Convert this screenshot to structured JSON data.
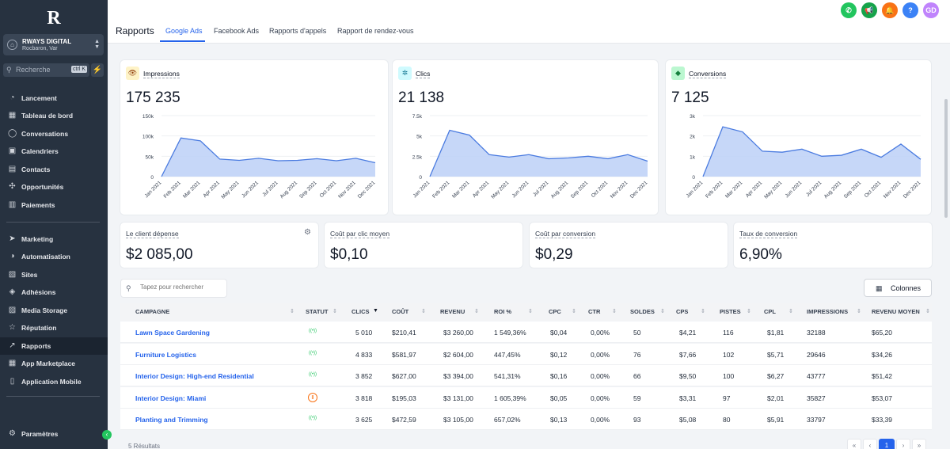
{
  "sidebar": {
    "logo": "R",
    "account": {
      "name": "RWAYS DIGITAL",
      "location": "Rocbaron, Var"
    },
    "search": {
      "placeholder": "Recherche",
      "shortcut": "ctrl K"
    },
    "items": [
      {
        "label": "Lancement",
        "icon": "rocket-icon"
      },
      {
        "label": "Tableau de bord",
        "icon": "dashboard-icon"
      },
      {
        "label": "Conversations",
        "icon": "chat-icon"
      },
      {
        "label": "Calendriers",
        "icon": "calendar-icon"
      },
      {
        "label": "Contacts",
        "icon": "contacts-icon"
      },
      {
        "label": "Opportunités",
        "icon": "opportunities-icon"
      },
      {
        "label": "Paiements",
        "icon": "payments-icon"
      },
      {
        "label": "Marketing",
        "icon": "send-icon"
      },
      {
        "label": "Automatisation",
        "icon": "automation-icon"
      },
      {
        "label": "Sites",
        "icon": "sites-icon"
      },
      {
        "label": "Adhésions",
        "icon": "membership-icon"
      },
      {
        "label": "Media Storage",
        "icon": "media-icon"
      },
      {
        "label": "Réputation",
        "icon": "star-icon"
      },
      {
        "label": "Rapports",
        "icon": "reports-icon",
        "active": true
      },
      {
        "label": "App Marketplace",
        "icon": "marketplace-icon"
      },
      {
        "label": "Application Mobile",
        "icon": "mobile-icon"
      }
    ],
    "settings": "Paramètres"
  },
  "header": {
    "title": "Rapports",
    "tabs": [
      "Google Ads",
      "Facebook Ads",
      "Rapports d'appels",
      "Rapport de rendez-vous"
    ],
    "avatar": "GD",
    "accent": "#2563eb"
  },
  "charts": [
    {
      "label": "Impressions",
      "value": "175 235",
      "icon": "eye-icon"
    },
    {
      "label": "Clics",
      "value": "21 138",
      "icon": "cursor-click-icon"
    },
    {
      "label": "Conversions",
      "value": "7 125",
      "icon": "diamond-icon"
    }
  ],
  "chart_data": [
    {
      "type": "area",
      "x": [
        "Jan 2021",
        "Feb 2021",
        "Mar 2021",
        "Apr 2021",
        "May 2021",
        "Jun 2021",
        "Jul 2021",
        "Aug 2021",
        "Sep 2021",
        "Oct 2021",
        "Nov 2021",
        "Dec 2021"
      ],
      "series": [
        {
          "values": [
            0,
            95000,
            88000,
            43000,
            40000,
            45000,
            39000,
            40000,
            44000,
            39000,
            45000,
            34000
          ]
        }
      ],
      "yticks": [
        "0",
        "50k",
        "100k",
        "150k"
      ],
      "ylim": [
        0,
        150000
      ]
    },
    {
      "type": "area",
      "x": [
        "Jan 2021",
        "Feb 2021",
        "Mar 2021",
        "Apr 2021",
        "May 2021",
        "Jun 2021",
        "Jul 2021",
        "Aug 2021",
        "Sep 2021",
        "Oct 2021",
        "Nov 2021",
        "Dec 2021"
      ],
      "series": [
        {
          "values": [
            0,
            5700,
            5100,
            2700,
            2400,
            2700,
            2200,
            2300,
            2500,
            2200,
            2700,
            1900
          ]
        }
      ],
      "yticks": [
        "0",
        "2.5k",
        "5k",
        "7.5k"
      ],
      "ylim": [
        0,
        7500
      ]
    },
    {
      "type": "area",
      "x": [
        "Jan 2021",
        "Feb 2021",
        "Mar 2021",
        "Apr 2021",
        "May 2021",
        "Jun 2021",
        "Jul 2021",
        "Aug 2021",
        "Sep 2021",
        "Oct 2021",
        "Nov 2021",
        "Dec 2021"
      ],
      "series": [
        {
          "values": [
            0,
            2450,
            2200,
            1250,
            1200,
            1350,
            1000,
            1050,
            1350,
            950,
            1600,
            850
          ]
        }
      ],
      "yticks": [
        "0",
        "1k",
        "2k",
        "3k"
      ],
      "ylim": [
        0,
        3000
      ]
    }
  ],
  "stats": [
    {
      "label": "Le client dépense",
      "value": "$2 085,00"
    },
    {
      "label": "Coût par clic moyen",
      "value": "$0,10"
    },
    {
      "label": "Coût par conversion",
      "value": "$0,29"
    },
    {
      "label": "Taux de conversion",
      "value": "6,90%"
    }
  ],
  "table": {
    "search_placeholder": "Tapez pour rechercher",
    "columns_button": "Colonnes",
    "headers": [
      "CAMPAGNE",
      "STATUT",
      "CLICS",
      "COÛT",
      "REVENU",
      "ROI %",
      "CPC",
      "CTR",
      "SOLDES",
      "CPS",
      "PISTES",
      "CPL",
      "IMPRESSIONS",
      "REVENU MOYEN"
    ],
    "rows": [
      {
        "name": "Lawn Space Gardening",
        "status": "active",
        "cells": [
          "5 010",
          "$210,41",
          "$3 260,00",
          "1 549,36%",
          "$0,04",
          "0,00%",
          "50",
          "$4,21",
          "116",
          "$1,81",
          "32188",
          "$65,20"
        ]
      },
      {
        "name": "Furniture Logistics",
        "status": "active",
        "cells": [
          "4 833",
          "$581,97",
          "$2 604,00",
          "447,45%",
          "$0,12",
          "0,00%",
          "76",
          "$7,66",
          "102",
          "$5,71",
          "29646",
          "$34,26"
        ]
      },
      {
        "name": "Interior Design: High-end Residential",
        "status": "active",
        "cells": [
          "3 852",
          "$627,00",
          "$3 394,00",
          "541,31%",
          "$0,16",
          "0,00%",
          "66",
          "$9,50",
          "100",
          "$6,27",
          "43777",
          "$51,42"
        ]
      },
      {
        "name": "Interior Design: Miami",
        "status": "paused",
        "cells": [
          "3 818",
          "$195,03",
          "$3 131,00",
          "1 605,39%",
          "$0,05",
          "0,00%",
          "59",
          "$3,31",
          "97",
          "$2,01",
          "35827",
          "$53,07"
        ]
      },
      {
        "name": "Planting and Trimming",
        "status": "active",
        "cells": [
          "3 625",
          "$472,59",
          "$3 105,00",
          "657,02%",
          "$0,13",
          "0,00%",
          "93",
          "$5,08",
          "80",
          "$5,91",
          "33797",
          "$33,39"
        ]
      }
    ],
    "results": "5 Résultats",
    "pagination": {
      "first": "«",
      "prev": "‹",
      "current": "1",
      "next": "›",
      "last": "»"
    }
  }
}
